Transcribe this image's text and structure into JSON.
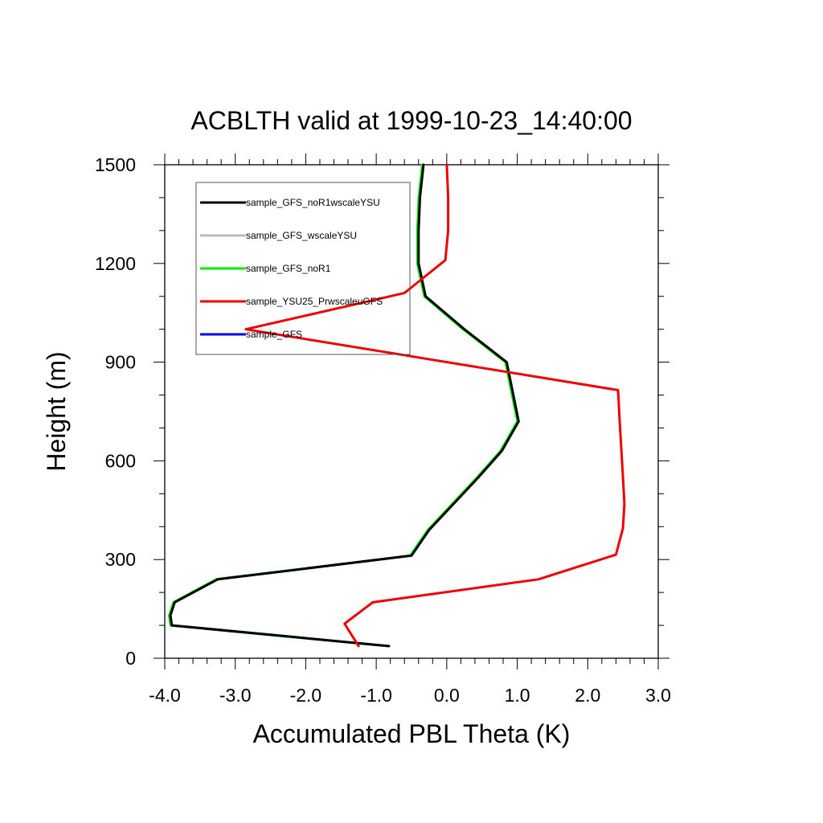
{
  "chart_data": {
    "type": "line",
    "title": "ACBLTH valid at 1999-10-23_14:40:00",
    "xlabel": "Accumulated PBL Theta (K)",
    "ylabel": "Height (m)",
    "xlim": [
      -4.0,
      3.0
    ],
    "ylim": [
      0,
      1500
    ],
    "xticks": [
      "-4.0",
      "-3.0",
      "-2.0",
      "-1.0",
      "0.0",
      "1.0",
      "2.0",
      "3.0"
    ],
    "yticks": [
      "0",
      "300",
      "600",
      "900",
      "1200",
      "1500"
    ],
    "legend_position": "top-left",
    "series": [
      {
        "name": "sample_GFS_noR1wscaleYSU",
        "color": "#000000",
        "x": [
          -0.82,
          -3.9,
          -3.92,
          -3.86,
          -3.25,
          -0.5,
          -0.25,
          0.1,
          0.45,
          0.78,
          1.02,
          0.85,
          0.25,
          -0.3,
          -0.4,
          -0.4,
          -0.38,
          -0.33
        ],
        "y": [
          37,
          100,
          130,
          170,
          240,
          312,
          390,
          470,
          550,
          630,
          720,
          900,
          1000,
          1100,
          1200,
          1300,
          1400,
          1500
        ]
      },
      {
        "name": "sample_GFS_wscaleYSU",
        "color": "#bbbbbb",
        "x": [
          -0.82,
          -3.9,
          -3.92,
          -3.86,
          -3.25,
          -0.5,
          -0.25,
          0.1,
          0.45,
          0.78,
          1.02,
          0.85,
          0.25,
          -0.3,
          -0.4,
          -0.4,
          -0.38,
          -0.33
        ],
        "y": [
          37,
          100,
          130,
          170,
          240,
          312,
          390,
          470,
          550,
          630,
          720,
          900,
          1000,
          1100,
          1200,
          1300,
          1400,
          1500
        ]
      },
      {
        "name": "sample_GFS_noR1",
        "color": "#00ee00",
        "x": [
          -0.82,
          -3.9,
          -3.92,
          -3.86,
          -3.25,
          -0.5,
          -0.25,
          0.1,
          0.45,
          0.78,
          1.02,
          0.85,
          0.25,
          -0.3,
          -0.4,
          -0.4,
          -0.38,
          -0.33
        ],
        "y": [
          37,
          100,
          130,
          170,
          240,
          312,
          390,
          470,
          550,
          630,
          720,
          900,
          1000,
          1100,
          1200,
          1300,
          1400,
          1500
        ]
      },
      {
        "name": "sample_YSU25_PrwscaleuGFS",
        "color": "#ee0000",
        "x": [
          -1.25,
          -1.45,
          -1.05,
          1.3,
          2.4,
          2.5,
          2.52,
          2.5,
          2.45,
          2.43,
          -2.85,
          -0.6,
          -0.02,
          0.02,
          0.02,
          0.0
        ],
        "y": [
          37,
          105,
          170,
          240,
          315,
          395,
          470,
          550,
          730,
          815,
          1000,
          1110,
          1210,
          1300,
          1400,
          1500
        ]
      },
      {
        "name": "sample_GFS",
        "color": "#0000ee",
        "x": [],
        "y": []
      }
    ]
  }
}
